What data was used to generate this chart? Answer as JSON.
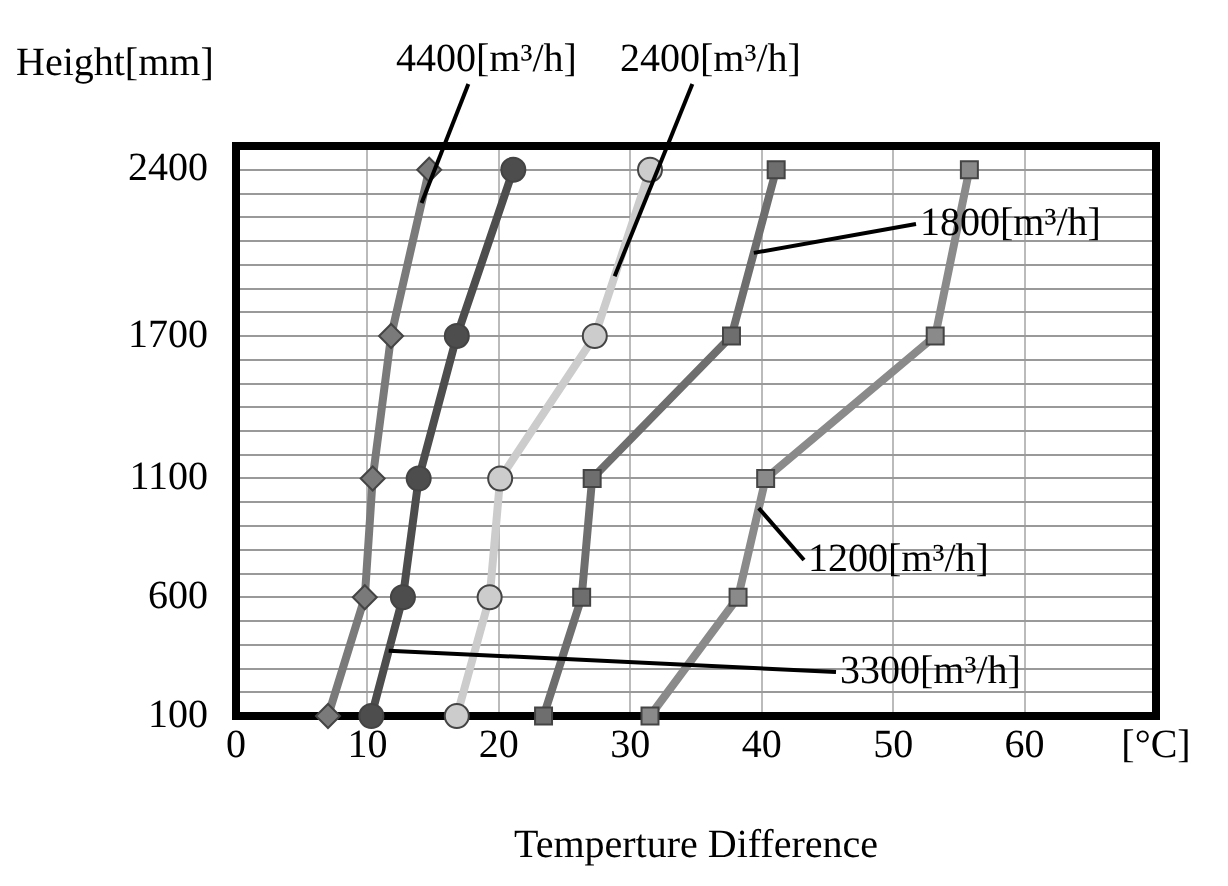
{
  "chart_data": {
    "type": "line",
    "xlabel": "Temperture Difference",
    "ylabel": "Height[mm]",
    "series": [
      {
        "name": "4400[m³/h]",
        "color": "#7a7a7a",
        "marker": "diamond",
        "x": [
          7.0,
          9.8,
          10.4,
          11.8,
          14.7
        ],
        "values": [
          100,
          600,
          1100,
          1700,
          2400
        ]
      },
      {
        "name": "3300[m³/h]",
        "color": "#4d4d4d",
        "marker": "circle",
        "x": [
          10.3,
          12.7,
          13.9,
          16.8,
          21.1
        ],
        "values": [
          100,
          600,
          1100,
          1700,
          2400
        ]
      },
      {
        "name": "2400[m³/h]",
        "color": "#cccccc",
        "marker": "circle",
        "x": [
          16.8,
          19.3,
          20.1,
          27.3,
          31.5
        ],
        "values": [
          100,
          600,
          1100,
          1700,
          2400
        ]
      },
      {
        "name": "1800[m³/h]",
        "color": "#6e6e6e",
        "marker": "square",
        "x": [
          23.4,
          26.3,
          27.1,
          37.7,
          41.1
        ],
        "values": [
          100,
          600,
          1100,
          1700,
          2400
        ]
      },
      {
        "name": "1200[m³/h]",
        "color": "#8a8a8a",
        "marker": "square",
        "x": [
          31.5,
          38.2,
          40.3,
          53.2,
          55.8
        ],
        "values": [
          100,
          600,
          1100,
          1700,
          2400
        ]
      }
    ],
    "xlim": [
      0,
      70
    ],
    "xticks": [
      0,
      10,
      20,
      30,
      40,
      50,
      60,
      {
        "value": 70,
        "label": "[°C]"
      }
    ],
    "ylim": [
      100,
      2500
    ],
    "yticks": [
      100,
      {
        "value": 200,
        "label": null
      },
      {
        "value": 300,
        "label": null
      },
      {
        "value": 400,
        "label": null
      },
      {
        "value": 500,
        "label": null
      },
      600,
      {
        "value": 700,
        "label": null
      },
      {
        "value": 800,
        "label": null
      },
      {
        "value": 900,
        "label": null
      },
      {
        "value": 1000,
        "label": null
      },
      1100,
      {
        "value": 1200,
        "label": null
      },
      {
        "value": 1300,
        "label": null
      },
      {
        "value": 1400,
        "label": null
      },
      {
        "value": 1500,
        "label": null
      },
      {
        "value": 1600,
        "label": null
      },
      1700,
      {
        "value": 1800,
        "label": null
      },
      {
        "value": 1900,
        "label": null
      },
      {
        "value": 2000,
        "label": null
      },
      {
        "value": 2100,
        "label": null
      },
      {
        "value": 2200,
        "label": null
      },
      {
        "value": 2300,
        "label": null
      },
      2400,
      {
        "value": 2500,
        "label": null
      }
    ],
    "grid": true,
    "legend": false,
    "line_style": "solid"
  }
}
